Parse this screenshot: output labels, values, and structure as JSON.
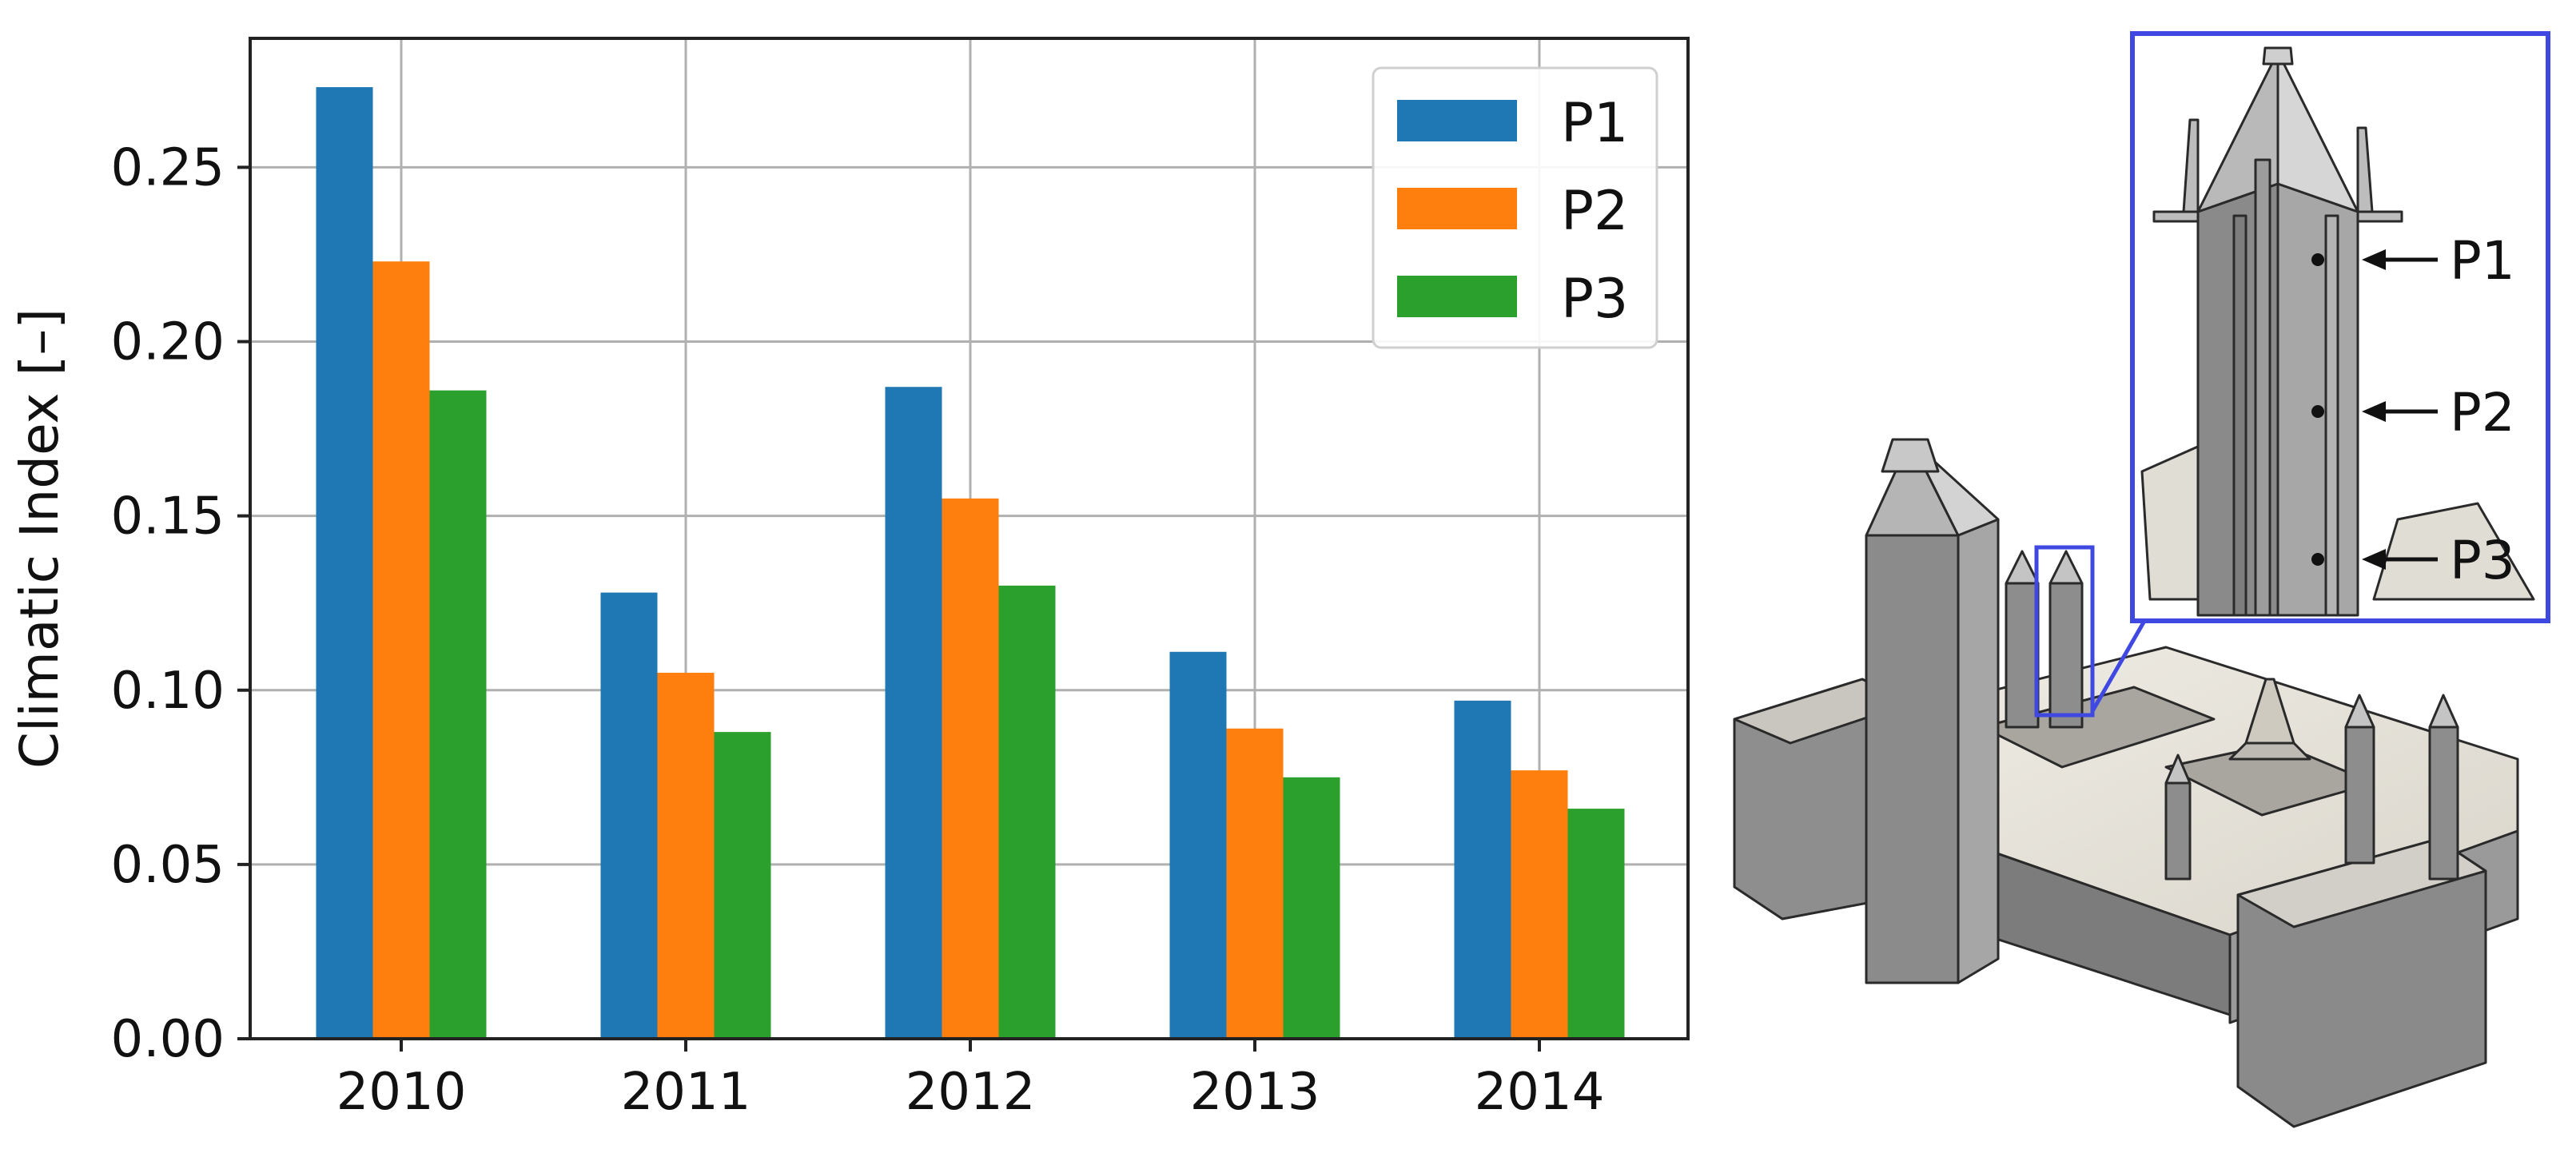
{
  "chart_data": {
    "type": "bar",
    "categories": [
      "2010",
      "2011",
      "2012",
      "2013",
      "2014"
    ],
    "series": [
      {
        "name": "P1",
        "color": "#1f77b4",
        "values": [
          0.273,
          0.128,
          0.187,
          0.111,
          0.097
        ]
      },
      {
        "name": "P2",
        "color": "#ff7f0e",
        "values": [
          0.223,
          0.105,
          0.155,
          0.089,
          0.077
        ]
      },
      {
        "name": "P3",
        "color": "#2ca02c",
        "values": [
          0.186,
          0.088,
          0.13,
          0.075,
          0.066
        ]
      }
    ],
    "xlabel": "",
    "ylabel": "Climatic Index [–]",
    "ylim": [
      0,
      0.287
    ],
    "yticks": [
      "0.00",
      "0.05",
      "0.10",
      "0.15",
      "0.20",
      "0.25"
    ],
    "grid": true,
    "legend_position": "top-right"
  },
  "inset": {
    "labels": [
      "P1",
      "P2",
      "P3"
    ],
    "frame_color": "#3f48e0"
  }
}
